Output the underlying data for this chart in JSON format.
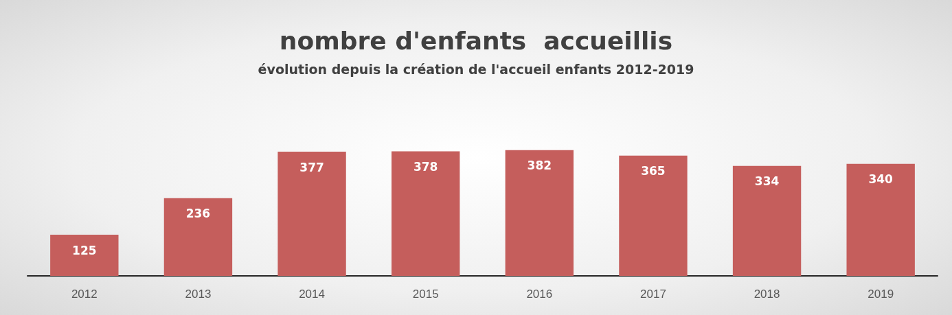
{
  "chart_data": {
    "type": "bar",
    "title": "nombre d'enfants  accueillis",
    "subtitle": "évolution depuis la création de l'accueil enfants 2012-2019",
    "categories": [
      "2012",
      "2013",
      "2014",
      "2015",
      "2016",
      "2017",
      "2018",
      "2019"
    ],
    "values": [
      125,
      236,
      377,
      378,
      382,
      365,
      334,
      340
    ],
    "color": "#c55e5c",
    "data_labels": true
  }
}
